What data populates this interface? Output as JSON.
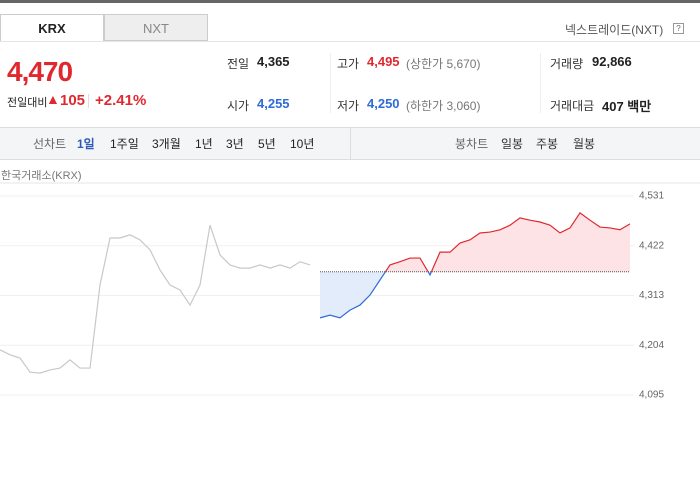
{
  "tabs": [
    "KRX",
    "NXT"
  ],
  "nxt_link": "넥스트레이드(NXT)",
  "help_icon": "?",
  "price": "4,470",
  "change_label": "전일대비",
  "change_arrow": "▲",
  "change": "105",
  "change_rate": "+2.41%",
  "stats": [
    {
      "label": "전일",
      "value": "4,365"
    },
    {
      "label": "고가",
      "value": "4,495",
      "note": "(상한가 5,670)"
    },
    {
      "label": "거래량",
      "value": "92,866"
    },
    {
      "label": "시가",
      "value": "4,255"
    },
    {
      "label": "저가",
      "value": "4,250",
      "note": "(하한가 3,060)"
    },
    {
      "label": "거래대금",
      "value": "407 백만"
    }
  ],
  "toolbar": {
    "line_label": "선차트",
    "line_periods": [
      "1일",
      "1주일",
      "3개월",
      "1년",
      "3년",
      "5년",
      "10년"
    ],
    "candle_label": "봉차트",
    "candle_periods": [
      "일봉",
      "주봉",
      "월봉"
    ]
  },
  "chart_data": {
    "type": "line",
    "title": "한국거래소(KRX)",
    "ylim": [
      4095,
      4531
    ],
    "yticks": [
      {
        "value": 4095,
        "label": "4,095"
      },
      {
        "value": 4204,
        "label": "4,204"
      },
      {
        "value": 4313,
        "label": "4,313"
      },
      {
        "value": 4422,
        "label": "4,422"
      },
      {
        "value": 4531,
        "label": "4,531"
      }
    ],
    "grid": true,
    "reference_line": 4365,
    "series": [
      {
        "color": "#c8c8c8",
        "values": [
          4194,
          4183,
          4176,
          4145,
          4143,
          4150,
          4154,
          4172,
          4154,
          4154,
          4336,
          4439,
          4439,
          4446,
          4435,
          4413,
          4369,
          4336,
          4325,
          4292,
          4336,
          4467,
          4402,
          4380,
          4373,
          4373,
          4380,
          4373,
          4380,
          4373,
          4387,
          4380,
          null,
          null,
          null,
          null,
          null,
          null,
          null,
          null,
          null,
          null,
          null,
          null,
          null,
          null,
          null,
          null,
          null,
          null,
          null,
          null,
          null,
          null,
          null,
          null,
          null,
          null,
          null,
          null,
          null,
          null,
          null,
          null
        ]
      },
      {
        "up_color": "#e0292f",
        "down_color": "#2e6bd6",
        "up_fill": "#fde3e5",
        "down_fill": "#e3ecfb",
        "values": [
          null,
          null,
          null,
          null,
          null,
          null,
          null,
          null,
          null,
          null,
          null,
          null,
          null,
          null,
          null,
          null,
          null,
          null,
          null,
          null,
          null,
          null,
          null,
          null,
          null,
          null,
          null,
          null,
          null,
          null,
          null,
          null,
          4264,
          4270,
          4264,
          4281,
          4292,
          4314,
          4347,
          4380,
          4387,
          4395,
          4395,
          4358,
          4408,
          4408,
          4428,
          4435,
          4450,
          4452,
          4457,
          4467,
          4483,
          4478,
          4474,
          4467,
          4450,
          4461,
          4494,
          4478,
          4463,
          4461,
          4457,
          4470
        ]
      }
    ]
  }
}
